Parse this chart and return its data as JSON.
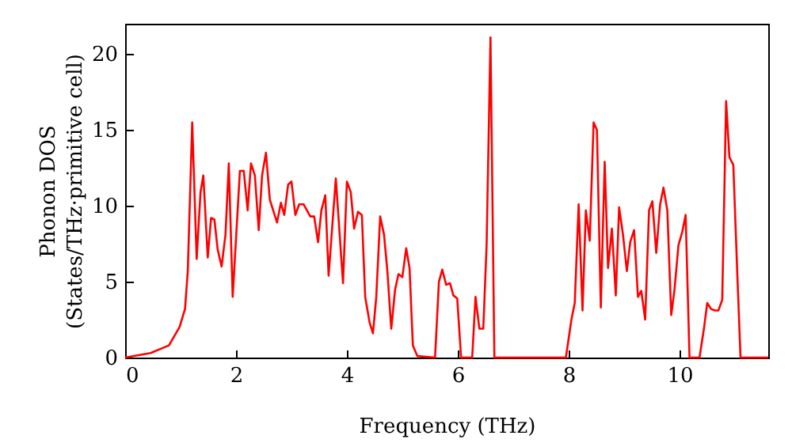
{
  "chart_data": {
    "type": "line",
    "xlabel": "Frequency (THz)",
    "ylabel": "Phonon DOS\n(States/THz·primitive cell)",
    "xlim": [
      0,
      11.6
    ],
    "ylim": [
      0,
      22
    ],
    "xticks": [
      0,
      2,
      4,
      6,
      8,
      10
    ],
    "yticks": [
      0,
      5,
      10,
      15,
      20
    ],
    "grid": false,
    "marker": "none",
    "line_style": "solid",
    "series": [
      {
        "color": "#ff0000",
        "x": [
          0,
          0.46,
          0.79,
          0.98,
          1.08,
          1.13,
          1.21,
          1.29,
          1.36,
          1.41,
          1.49,
          1.55,
          1.61,
          1.67,
          1.74,
          1.81,
          1.87,
          1.94,
          2.07,
          2.14,
          2.21,
          2.27,
          2.34,
          2.41,
          2.47,
          2.54,
          2.61,
          2.74,
          2.81,
          2.87,
          2.94,
          3.0,
          3.07,
          3.14,
          3.22,
          3.34,
          3.41,
          3.48,
          3.54,
          3.61,
          3.67,
          3.8,
          3.93,
          4.0,
          4.07,
          4.13,
          4.2,
          4.27,
          4.33,
          4.41,
          4.47,
          4.53,
          4.6,
          4.67,
          4.73,
          4.8,
          4.87,
          4.93,
          5.0,
          5.07,
          5.13,
          5.19,
          5.27,
          5.59,
          5.66,
          5.72,
          5.79,
          5.86,
          5.92,
          5.99,
          6.06,
          6.26,
          6.32,
          6.39,
          6.46,
          6.52,
          6.59,
          6.66,
          7.95,
          8.05,
          8.11,
          8.18,
          8.25,
          8.31,
          8.38,
          8.45,
          8.51,
          8.58,
          8.65,
          8.71,
          8.78,
          8.85,
          8.91,
          8.98,
          9.05,
          9.11,
          9.18,
          9.25,
          9.31,
          9.38,
          9.45,
          9.51,
          9.58,
          9.65,
          9.71,
          9.78,
          9.85,
          9.91,
          9.98,
          10.05,
          10.11,
          10.18,
          10.36,
          10.44,
          10.5,
          10.57,
          10.64,
          10.7,
          10.77,
          10.84,
          10.9,
          10.97,
          11.04,
          11.1,
          11.6
        ],
        "values": [
          0,
          0.3,
          0.8,
          2.0,
          3.2,
          5.7,
          15.5,
          6.5,
          10.9,
          12.0,
          6.6,
          9.2,
          9.1,
          7.1,
          6.0,
          8.1,
          12.8,
          4.0,
          12.3,
          12.3,
          9.7,
          12.8,
          12.0,
          8.4,
          12.0,
          13.5,
          10.4,
          8.9,
          10.2,
          9.4,
          11.4,
          11.6,
          9.4,
          10.1,
          10.1,
          9.3,
          9.3,
          7.6,
          9.7,
          10.7,
          5.4,
          11.8,
          4.9,
          11.6,
          10.9,
          8.5,
          9.6,
          9.4,
          4.0,
          2.3,
          1.6,
          4.0,
          9.3,
          8.1,
          5.7,
          1.9,
          4.5,
          5.5,
          5.3,
          7.2,
          5.9,
          0.8,
          0.1,
          0,
          5.0,
          5.8,
          4.8,
          4.9,
          4.1,
          3.9,
          0,
          0,
          4.0,
          1.9,
          1.9,
          7.4,
          21.1,
          0,
          0,
          2.5,
          3.6,
          10.1,
          3.1,
          9.7,
          7.7,
          15.5,
          15.0,
          3.3,
          12.9,
          5.9,
          8.5,
          4.1,
          9.9,
          8.1,
          5.7,
          7.6,
          8.4,
          4.0,
          4.4,
          2.5,
          9.7,
          10.3,
          6.9,
          10.1,
          11.2,
          9.7,
          2.8,
          4.5,
          7.4,
          8.3,
          9.4,
          0,
          0,
          1.9,
          3.6,
          3.2,
          3.1,
          3.1,
          3.8,
          16.9,
          13.2,
          12.7,
          5.7,
          0,
          0
        ]
      }
    ]
  }
}
